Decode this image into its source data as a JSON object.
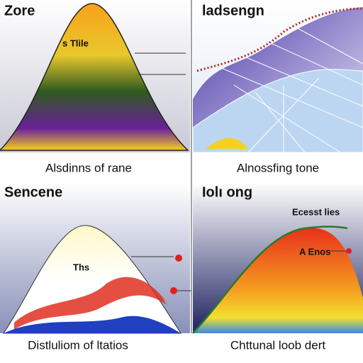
{
  "panels": [
    {
      "title": "Zore",
      "labels": [
        "s Tlile"
      ],
      "caption": "Alsdinns of rane"
    },
    {
      "title": "ladsengn",
      "labels": [],
      "caption": "Alnossfing tone"
    },
    {
      "title": "Sencene",
      "labels": [
        "Ths"
      ],
      "caption": "Distluliom of ltatios"
    },
    {
      "title": "Iolı ong",
      "labels": [
        "Ecesst lies",
        "A Enos"
      ],
      "caption": "Chttunal loob dert"
    }
  ]
}
